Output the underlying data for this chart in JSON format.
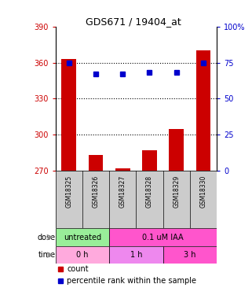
{
  "title": "GDS671 / 19404_at",
  "samples": [
    "GSM18325",
    "GSM18326",
    "GSM18327",
    "GSM18328",
    "GSM18329",
    "GSM18330"
  ],
  "bar_values": [
    363,
    283,
    272,
    287,
    305,
    370
  ],
  "dot_values": [
    75,
    67,
    67,
    68,
    68,
    75
  ],
  "bar_color": "#cc0000",
  "dot_color": "#0000cc",
  "ylim_left": [
    270,
    390
  ],
  "ylim_right": [
    0,
    100
  ],
  "yticks_left": [
    270,
    300,
    330,
    360,
    390
  ],
  "yticks_right": [
    0,
    25,
    50,
    75,
    100
  ],
  "ytick_labels_left": [
    "270",
    "300",
    "330",
    "360",
    "390"
  ],
  "ytick_labels_right": [
    "0",
    "25",
    "50",
    "75",
    "100%"
  ],
  "hlines": [
    300,
    330,
    360
  ],
  "dose_labels": [
    {
      "text": "untreated",
      "span": [
        0,
        2
      ],
      "fc": "#99ee99"
    },
    {
      "text": "0.1 uM IAA",
      "span": [
        2,
        6
      ],
      "fc": "#ff55cc"
    }
  ],
  "time_labels": [
    {
      "text": "0 h",
      "span": [
        0,
        2
      ],
      "fc": "#ffaadd"
    },
    {
      "text": "1 h",
      "span": [
        2,
        4
      ],
      "fc": "#ee88ee"
    },
    {
      "text": "3 h",
      "span": [
        4,
        6
      ],
      "fc": "#ff55cc"
    }
  ],
  "dose_row_label": "dose",
  "time_row_label": "time",
  "legend_count_label": "count",
  "legend_pct_label": "percentile rank within the sample",
  "bar_width": 0.55,
  "tick_color_left": "#cc0000",
  "tick_color_right": "#0000cc",
  "sample_box_color": "#cccccc",
  "arrow_color": "#888888"
}
